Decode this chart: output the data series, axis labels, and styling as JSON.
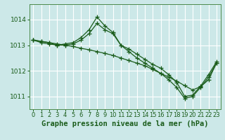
{
  "title": "Graphe pression niveau de la mer (hPa)",
  "bg_color": "#cce8e8",
  "grid_color": "#b0d8d8",
  "line_color": "#1a5c1a",
  "xlim": [
    -0.5,
    23.5
  ],
  "ylim": [
    1010.5,
    1014.6
  ],
  "yticks": [
    1011,
    1012,
    1013,
    1014
  ],
  "xticks": [
    0,
    1,
    2,
    3,
    4,
    5,
    6,
    7,
    8,
    9,
    10,
    11,
    12,
    13,
    14,
    15,
    16,
    17,
    18,
    19,
    20,
    21,
    22,
    23
  ],
  "hours": [
    0,
    1,
    2,
    3,
    4,
    5,
    6,
    7,
    8,
    9,
    10,
    11,
    12,
    13,
    14,
    15,
    16,
    17,
    18,
    19,
    20,
    21,
    22,
    23
  ],
  "line1": [
    1013.2,
    1013.15,
    1013.1,
    1013.0,
    1013.05,
    1013.1,
    1013.3,
    1013.6,
    1014.1,
    1013.75,
    1013.5,
    1013.0,
    1012.85,
    1012.65,
    1012.45,
    1012.25,
    1012.1,
    1011.85,
    1011.55,
    1011.0,
    1011.05,
    1011.4,
    1011.85,
    1012.35
  ],
  "line2": [
    1013.2,
    1013.1,
    1013.05,
    1013.0,
    1013.0,
    1013.05,
    1013.2,
    1013.45,
    1013.85,
    1013.6,
    1013.45,
    1013.0,
    1012.75,
    1012.5,
    1012.3,
    1012.1,
    1011.9,
    1011.65,
    1011.35,
    1010.92,
    1011.0,
    1011.35,
    1011.75,
    1012.3
  ],
  "line3": [
    1013.2,
    1013.15,
    1013.1,
    1013.05,
    1013.0,
    1012.95,
    1012.88,
    1012.82,
    1012.75,
    1012.68,
    1012.6,
    1012.5,
    1012.4,
    1012.3,
    1012.2,
    1012.05,
    1011.9,
    1011.75,
    1011.6,
    1011.42,
    1011.25,
    1011.38,
    1011.65,
    1012.3
  ],
  "title_fontsize": 7.5,
  "tick_fontsize": 6.0
}
